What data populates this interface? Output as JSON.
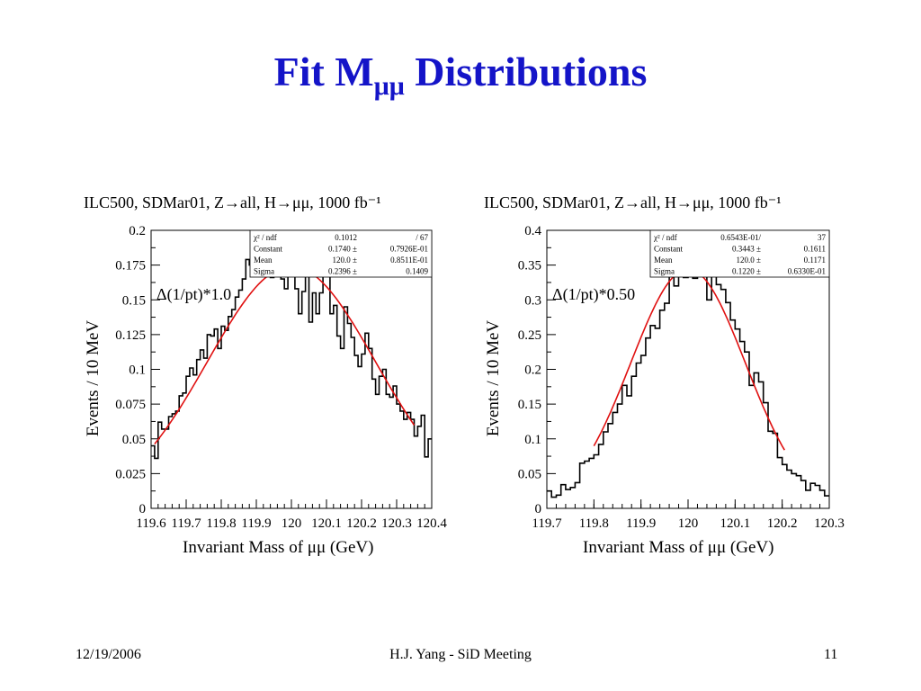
{
  "slide": {
    "title_main": "Fit M",
    "title_sub": "μμ",
    "title_rest": " Distributions"
  },
  "footer": {
    "date": "12/19/2006",
    "center": "H.J. Yang - SiD Meeting",
    "page": "11"
  },
  "chart_data": [
    {
      "type": "line",
      "title": "ILC500, SDMar01, Z→all, H→μμ, 1000 fb⁻¹",
      "xlabel": "Invariant Mass of μμ (GeV)",
      "ylabel": "Events / 10 MeV",
      "annotation": "Δ(1/pt)*1.0",
      "xlim": [
        119.6,
        120.4
      ],
      "ylim": [
        0,
        0.2
      ],
      "x_ticks": [
        "119.6",
        "119.7",
        "119.8",
        "119.9",
        "120",
        "120.1",
        "120.2",
        "120.3",
        "120.4"
      ],
      "x_tick_labels_printed": [
        "119.6",
        "119.7",
        "119.8",
        "119.9",
        "120",
        "120.1",
        "120.2",
        "120.3",
        "120.4"
      ],
      "x_tick_values": [
        119.6,
        119.7,
        119.8,
        119.9,
        120.0,
        120.1,
        120.2,
        120.3,
        120.4
      ],
      "y_tick_values": [
        0,
        0.025,
        0.05,
        0.075,
        0.1,
        0.125,
        0.15,
        0.175,
        0.2
      ],
      "y_ticks": [
        "0",
        "0.025",
        "0.05",
        "0.075",
        "0.1",
        "0.125",
        "0.15",
        "0.175",
        "0.2"
      ],
      "histogram": {
        "bin_start": 119.6,
        "bin_width": 0.01,
        "values": [
          0.045,
          0.036,
          0.062,
          0.057,
          0.057,
          0.066,
          0.068,
          0.07,
          0.081,
          0.083,
          0.095,
          0.101,
          0.096,
          0.107,
          0.114,
          0.108,
          0.125,
          0.124,
          0.129,
          0.115,
          0.131,
          0.128,
          0.138,
          0.143,
          0.152,
          0.157,
          0.165,
          0.179,
          0.175,
          0.183,
          0.176,
          0.18,
          0.181,
          0.186,
          0.166,
          0.167,
          0.172,
          0.165,
          0.158,
          0.175,
          0.168,
          0.158,
          0.14,
          0.156,
          0.175,
          0.134,
          0.155,
          0.14,
          0.155,
          0.167,
          0.18,
          0.14,
          0.146,
          0.124,
          0.115,
          0.145,
          0.133,
          0.123,
          0.11,
          0.102,
          0.111,
          0.126,
          0.115,
          0.093,
          0.082,
          0.095,
          0.1,
          0.082,
          0.08,
          0.088,
          0.075,
          0.07,
          0.064,
          0.069,
          0.064,
          0.052,
          0.059,
          0.067,
          0.037,
          0.05
        ]
      },
      "fit_curve": {
        "color": "#e01010",
        "x_range": [
          119.61,
          120.35
        ],
        "constant": 0.174,
        "mean": 120.0,
        "sigma": 0.2396
      },
      "stats_box": {
        "rows": [
          {
            "name": "χ² / ndf",
            "value": "0.1012",
            "error": "/     67"
          },
          {
            "name": "Constant",
            "value": "0.1740 ±",
            "error": "0.7926E-01"
          },
          {
            "name": "Mean",
            "value": "120.0 ±",
            "error": "0.8511E-01"
          },
          {
            "name": "Sigma",
            "value": "0.2396 ±",
            "error": "0.1409"
          }
        ]
      }
    },
    {
      "type": "line",
      "title": "ILC500, SDMar01, Z→all, H→μμ, 1000 fb⁻¹",
      "xlabel": "Invariant Mass of μμ (GeV)",
      "ylabel": "Events / 10 MeV",
      "annotation": "Δ(1/pt)*0.50",
      "xlim": [
        119.7,
        120.3
      ],
      "ylim": [
        0,
        0.4
      ],
      "x_tick_values": [
        119.7,
        119.8,
        119.9,
        120.0,
        120.1,
        120.2,
        120.3
      ],
      "x_ticks": [
        "119.7",
        "119.8",
        "119.9",
        "120",
        "120.1",
        "120.2",
        "120.3"
      ],
      "y_tick_values": [
        0,
        0.05,
        0.1,
        0.15,
        0.2,
        0.25,
        0.3,
        0.35,
        0.4
      ],
      "y_ticks": [
        "0",
        "0.05",
        "0.1",
        "0.15",
        "0.2",
        "0.25",
        "0.3",
        "0.35",
        "0.4"
      ],
      "histogram": {
        "bin_start": 119.7,
        "bin_width": 0.01,
        "values": [
          0.025,
          0.016,
          0.019,
          0.034,
          0.027,
          0.03,
          0.037,
          0.065,
          0.068,
          0.072,
          0.077,
          0.092,
          0.11,
          0.122,
          0.138,
          0.15,
          0.177,
          0.162,
          0.19,
          0.209,
          0.22,
          0.245,
          0.263,
          0.259,
          0.285,
          0.295,
          0.335,
          0.32,
          0.343,
          0.332,
          0.38,
          0.331,
          0.356,
          0.35,
          0.3,
          0.35,
          0.322,
          0.315,
          0.296,
          0.271,
          0.258,
          0.24,
          0.225,
          0.177,
          0.195,
          0.182,
          0.152,
          0.111,
          0.108,
          0.073,
          0.063,
          0.055,
          0.05,
          0.047,
          0.04,
          0.026,
          0.036,
          0.033,
          0.026,
          0.018
        ]
      },
      "fit_curve": {
        "color": "#e01010",
        "x_range": [
          119.8,
          120.205
        ],
        "constant": 0.3443,
        "mean": 120.0,
        "sigma": 0.122
      },
      "stats_box": {
        "rows": [
          {
            "name": "χ² / ndf",
            "value": "0.6543E-01/",
            "error": "37"
          },
          {
            "name": "Constant",
            "value": "0.3443 ±",
            "error": "0.1611"
          },
          {
            "name": "Mean",
            "value": "120.0 ±",
            "error": "0.1171"
          },
          {
            "name": "Sigma",
            "value": "0.1220 ±",
            "error": "0.6330E-01"
          }
        ]
      }
    }
  ]
}
